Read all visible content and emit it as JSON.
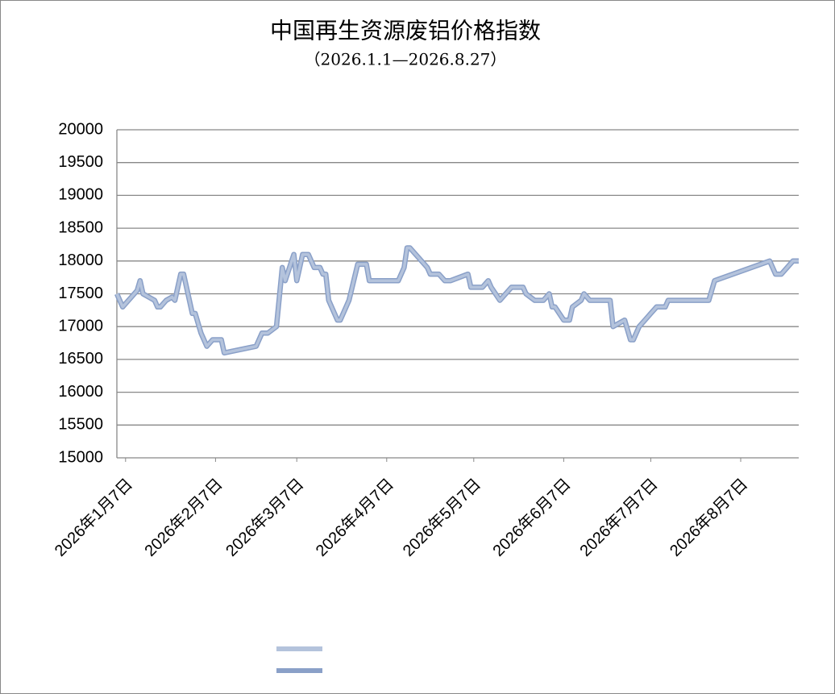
{
  "chart_data": {
    "type": "line",
    "title": "中国再生资源废铝价格指数",
    "subtitle": "（2026.1.1—2026.8.27）",
    "x": [
      4,
      6,
      10,
      11,
      12,
      13,
      15,
      17,
      18,
      19,
      21,
      23,
      24,
      26,
      27,
      30,
      31,
      33,
      35,
      37,
      40,
      41,
      52,
      54,
      56,
      59,
      61,
      62,
      65,
      66,
      68,
      70,
      72,
      74,
      75,
      76,
      77,
      80,
      81,
      83,
      84,
      87,
      90,
      91,
      101,
      103,
      104,
      105,
      110,
      111,
      112,
      115,
      117,
      119,
      125,
      126,
      130,
      132,
      133,
      136,
      138,
      140,
      144,
      145,
      148,
      151,
      153,
      154,
      155,
      158,
      160,
      161,
      164,
      165,
      167,
      174,
      175,
      179,
      181,
      182,
      184,
      186,
      188,
      190,
      193,
      194,
      208,
      210,
      229,
      231,
      233,
      237,
      239
    ],
    "series": [
      {
        "color": "#8aa0c8",
        "values": [
          17500,
          17300,
          17500,
          17550,
          17700,
          17500,
          17450,
          17400,
          17300,
          17300,
          17400,
          17450,
          17400,
          17800,
          17800,
          17200,
          17200,
          16900,
          16700,
          16800,
          16800,
          16600,
          16700,
          16900,
          16900,
          17000,
          17900,
          17700,
          18100,
          17700,
          18100,
          18100,
          17900,
          17900,
          17800,
          17800,
          17400,
          17100,
          17100,
          17300,
          17400,
          17950,
          17950,
          17700,
          17700,
          17900,
          18200,
          18200,
          17950,
          17900,
          17800,
          17800,
          17700,
          17700,
          17800,
          17600,
          17600,
          17700,
          17600,
          17400,
          17500,
          17600,
          17600,
          17500,
          17400,
          17400,
          17500,
          17300,
          17300,
          17100,
          17100,
          17300,
          17400,
          17500,
          17400,
          17400,
          17000,
          17100,
          16800,
          16800,
          17000,
          17100,
          17200,
          17300,
          17300,
          17400,
          17400,
          17700,
          18000,
          17800,
          17800,
          18000,
          18000
        ]
      },
      {
        "color": "#b4c3dc",
        "values": [
          17500,
          17300,
          17500,
          17550,
          17700,
          17500,
          17450,
          17400,
          17300,
          17300,
          17400,
          17450,
          17400,
          17800,
          17800,
          17200,
          17200,
          16900,
          16700,
          16800,
          16800,
          16600,
          16700,
          16900,
          16900,
          17000,
          17900,
          17700,
          18100,
          17700,
          18100,
          18100,
          17900,
          17900,
          17800,
          17800,
          17400,
          17100,
          17100,
          17300,
          17400,
          17950,
          17950,
          17700,
          17700,
          17900,
          18200,
          18200,
          17950,
          17900,
          17800,
          17800,
          17700,
          17700,
          17800,
          17600,
          17600,
          17700,
          17600,
          17400,
          17500,
          17600,
          17600,
          17500,
          17400,
          17400,
          17500,
          17300,
          17300,
          17100,
          17100,
          17300,
          17400,
          17500,
          17400,
          17400,
          17000,
          17100,
          16800,
          16800,
          17000,
          17100,
          17200,
          17300,
          17300,
          17400,
          17400,
          17700,
          18000,
          17800,
          17800,
          18000,
          18000
        ]
      }
    ],
    "xlim": [
      4,
      239
    ],
    "xticks": [
      {
        "value": 7,
        "label": "2026年1月7日"
      },
      {
        "value": 38,
        "label": "2026年2月7日"
      },
      {
        "value": 66,
        "label": "2026年3月7日"
      },
      {
        "value": 97,
        "label": "2026年4月7日"
      },
      {
        "value": 127,
        "label": "2026年5月7日"
      },
      {
        "value": 158,
        "label": "2026年6月7日"
      },
      {
        "value": 188,
        "label": "2026年7月7日"
      },
      {
        "value": 219,
        "label": "2026年8月7日"
      }
    ],
    "ylim": [
      15000,
      20000
    ],
    "yticks": [
      15000,
      15500,
      16000,
      16500,
      17000,
      17500,
      18000,
      18500,
      19000,
      19500,
      20000
    ],
    "grid": true
  }
}
